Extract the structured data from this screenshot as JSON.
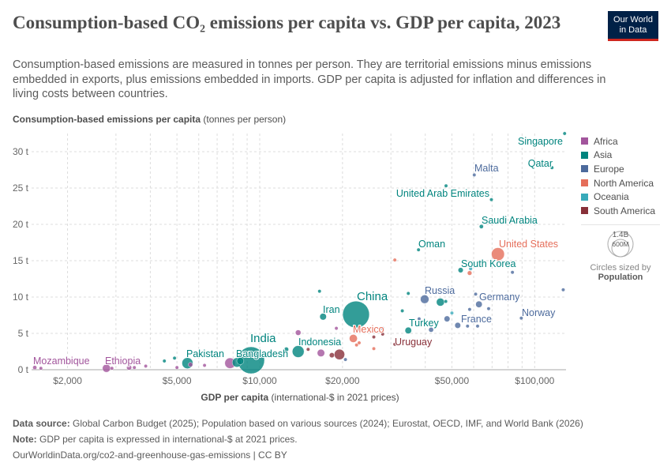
{
  "header": {
    "title": "Consumption-based CO₂ emissions per capita vs. GDP per capita, 2023",
    "subtitle": "Consumption-based emissions are measured in tonnes per person. They are territorial emissions minus emissions embedded in exports, plus emissions embedded in imports. GDP per capita is adjusted for inflation and differences in living costs between countries.",
    "logo_line1": "Our World",
    "logo_line2": "in Data"
  },
  "footer": {
    "source_label": "Data source:",
    "source": "Global Carbon Budget (2025); Population based on various sources (2024); Eurostat, OECD, IMF, and World Bank (2026)",
    "note_label": "Note:",
    "note": "GDP per capita is expressed in international-$ at 2021 prices.",
    "url": "OurWorldinData.org/co2-and-greenhouse-gas-emissions | CC BY"
  },
  "size_legend": {
    "big": "1.4B",
    "small": "600M",
    "caption": "Circles sized by",
    "variable": "Population"
  },
  "chart_data": {
    "type": "scatter",
    "title": "Consumption-based CO₂ emissions per capita vs. GDP per capita, 2023",
    "ylabel_bold": "Consumption-based emissions per capita",
    "ylabel_unit": "(tonnes per person)",
    "xlabel_bold": "GDP per capita",
    "xlabel_unit": "(international-$ in 2021 prices)",
    "x_scale": "log",
    "xlim": [
      1480,
      130000
    ],
    "ylim": [
      0,
      32.5
    ],
    "grid": true,
    "legend_placement": "right",
    "x_ticks": [
      {
        "v": 2000,
        "label": "$2,000"
      },
      {
        "v": 5000,
        "label": "$5,000"
      },
      {
        "v": 10000,
        "label": "$10,000"
      },
      {
        "v": 20000,
        "label": "$20,000"
      },
      {
        "v": 50000,
        "label": "$50,000"
      },
      {
        "v": 100000,
        "label": "$100,000"
      }
    ],
    "y_ticks": [
      {
        "v": 0,
        "label": "0 t"
      },
      {
        "v": 5,
        "label": "5 t"
      },
      {
        "v": 10,
        "label": "10 t"
      },
      {
        "v": 15,
        "label": "15 t"
      },
      {
        "v": 20,
        "label": "20 t"
      },
      {
        "v": 25,
        "label": "25 t"
      },
      {
        "v": 30,
        "label": "30 t"
      }
    ],
    "regions": [
      {
        "name": "Africa",
        "color": "#a2559c"
      },
      {
        "name": "Asia",
        "color": "#00847e"
      },
      {
        "name": "Europe",
        "color": "#4c6a9c"
      },
      {
        "name": "North America",
        "color": "#e56e5a"
      },
      {
        "name": "Oceania",
        "color": "#38aaba"
      },
      {
        "name": "South America",
        "color": "#883039"
      }
    ],
    "points": [
      {
        "name": "Singapore",
        "region": "Asia",
        "gdp": 128500,
        "co2": 32.5,
        "pop": 6,
        "label": true
      },
      {
        "name": "Qatar",
        "region": "Asia",
        "gdp": 115600,
        "co2": 27.8,
        "pop": 3,
        "label": true
      },
      {
        "name": "Malta",
        "region": "Europe",
        "gdp": 60300,
        "co2": 26.8,
        "pop": 0.5,
        "label": true
      },
      {
        "name": "United Arab Emirates",
        "region": "Asia",
        "gdp": 69600,
        "co2": 23.4,
        "pop": 10,
        "label": true
      },
      {
        "name": "Saudi Arabia",
        "region": "Asia",
        "gdp": 64000,
        "co2": 19.7,
        "pop": 33,
        "label": true
      },
      {
        "name": "Oman",
        "region": "Asia",
        "gdp": 37800,
        "co2": 16.5,
        "pop": 5,
        "label": true
      },
      {
        "name": "United States",
        "region": "North America",
        "gdp": 73500,
        "co2": 15.9,
        "pop": 335,
        "label": true
      },
      {
        "name": "South Korea",
        "region": "Asia",
        "gdp": 53800,
        "co2": 13.7,
        "pop": 52,
        "label": true
      },
      {
        "name": "China",
        "region": "Asia",
        "gdp": 22400,
        "co2": 7.6,
        "pop": 1410,
        "label": true
      },
      {
        "name": "Russia",
        "region": "Europe",
        "gdp": 39800,
        "co2": 9.7,
        "pop": 144,
        "label": true
      },
      {
        "name": "Germany",
        "region": "Europe",
        "gdp": 62700,
        "co2": 9.0,
        "pop": 84,
        "label": true
      },
      {
        "name": "Norway",
        "region": "Europe",
        "gdp": 89400,
        "co2": 7.1,
        "pop": 5.5,
        "label": true
      },
      {
        "name": "France",
        "region": "Europe",
        "gdp": 52500,
        "co2": 6.1,
        "pop": 68,
        "label": true
      },
      {
        "name": "Turkey",
        "region": "Asia",
        "gdp": 34700,
        "co2": 5.4,
        "pop": 85,
        "label": true
      },
      {
        "name": "Mexico",
        "region": "North America",
        "gdp": 21900,
        "co2": 4.3,
        "pop": 128,
        "label": true
      },
      {
        "name": "Uruguay",
        "region": "South America",
        "gdp": 31000,
        "co2": 3.5,
        "pop": 3.4,
        "label": true
      },
      {
        "name": "Iran",
        "region": "Asia",
        "gdp": 17000,
        "co2": 7.3,
        "pop": 89,
        "label": true
      },
      {
        "name": "Indonesia",
        "region": "Asia",
        "gdp": 13800,
        "co2": 2.5,
        "pop": 277,
        "label": true
      },
      {
        "name": "India",
        "region": "Asia",
        "gdp": 9300,
        "co2": 1.3,
        "pop": 1430,
        "label": true
      },
      {
        "name": "Bangladesh",
        "region": "Asia",
        "gdp": 8260,
        "co2": 1.0,
        "pop": 172,
        "label": true
      },
      {
        "name": "Pakistan",
        "region": "Asia",
        "gdp": 5460,
        "co2": 0.9,
        "pop": 240,
        "label": true
      },
      {
        "name": "Ethiopia",
        "region": "Africa",
        "gdp": 2770,
        "co2": 0.2,
        "pop": 126,
        "label": true
      },
      {
        "name": "Mozambique",
        "region": "Africa",
        "gdp": 1520,
        "co2": 0.3,
        "pop": 33,
        "label": true
      },
      {
        "region": "Africa",
        "gdp": 1600,
        "co2": 0.2,
        "pop": 20
      },
      {
        "region": "Africa",
        "gdp": 2900,
        "co2": 0.2,
        "pop": 5
      },
      {
        "region": "Africa",
        "gdp": 3350,
        "co2": 0.3,
        "pop": 50
      },
      {
        "region": "Africa",
        "gdp": 3500,
        "co2": 0.3,
        "pop": 8
      },
      {
        "region": "Africa",
        "gdp": 3850,
        "co2": 0.5,
        "pop": 8
      },
      {
        "region": "Africa",
        "gdp": 5000,
        "co2": 0.3,
        "pop": 15
      },
      {
        "region": "Africa",
        "gdp": 5600,
        "co2": 0.7,
        "pop": 40
      },
      {
        "region": "Africa",
        "gdp": 6300,
        "co2": 0.6,
        "pop": 20
      },
      {
        "region": "Africa",
        "gdp": 7800,
        "co2": 0.9,
        "pop": 220
      },
      {
        "region": "Africa",
        "gdp": 13800,
        "co2": 5.1,
        "pop": 60
      },
      {
        "region": "Africa",
        "gdp": 16700,
        "co2": 2.3,
        "pop": 110
      },
      {
        "region": "Africa",
        "gdp": 19000,
        "co2": 5.7,
        "pop": 7
      },
      {
        "region": "Asia",
        "gdp": 4500,
        "co2": 1.2,
        "pop": 5
      },
      {
        "region": "Asia",
        "gdp": 4900,
        "co2": 1.6,
        "pop": 10
      },
      {
        "region": "Asia",
        "gdp": 8500,
        "co2": 1.2,
        "pop": 100
      },
      {
        "region": "Asia",
        "gdp": 16500,
        "co2": 10.8,
        "pop": 4
      },
      {
        "region": "Asia",
        "gdp": 12500,
        "co2": 2.8,
        "pop": 40
      },
      {
        "region": "Asia",
        "gdp": 34700,
        "co2": 10.5,
        "pop": 4
      },
      {
        "region": "Asia",
        "gdp": 33000,
        "co2": 8.1,
        "pop": 8
      },
      {
        "region": "Asia",
        "gdp": 45400,
        "co2": 9.3,
        "pop": 125
      },
      {
        "region": "Asia",
        "gdp": 47600,
        "co2": 25.3,
        "pop": 4
      },
      {
        "region": "Asia",
        "gdp": 47500,
        "co2": 9.4,
        "pop": 10
      },
      {
        "region": "Europe",
        "gdp": 58000,
        "co2": 8.3,
        "pop": 5
      },
      {
        "region": "Europe",
        "gdp": 68000,
        "co2": 8.4,
        "pop": 9
      },
      {
        "region": "Europe",
        "gdp": 57000,
        "co2": 6.0,
        "pop": 10
      },
      {
        "region": "Europe",
        "gdp": 48000,
        "co2": 7.0,
        "pop": 68
      },
      {
        "region": "Europe",
        "gdp": 61000,
        "co2": 10.4,
        "pop": 5
      },
      {
        "region": "Europe",
        "gdp": 83000,
        "co2": 13.4,
        "pop": 5
      },
      {
        "region": "Europe",
        "gdp": 127000,
        "co2": 11.0,
        "pop": 0.6
      },
      {
        "region": "Europe",
        "gdp": 42000,
        "co2": 5.5,
        "pop": 47
      },
      {
        "region": "Europe",
        "gdp": 62000,
        "co2": 6.0,
        "pop": 17
      },
      {
        "region": "Europe",
        "gdp": 28000,
        "co2": 5.7,
        "pop": 9
      },
      {
        "region": "Europe",
        "gdp": 38000,
        "co2": 7.0,
        "pop": 10
      },
      {
        "region": "Europe",
        "gdp": 20500,
        "co2": 1.4,
        "pop": 3
      },
      {
        "region": "North America",
        "gdp": 31000,
        "co2": 15.1,
        "pop": 1.5
      },
      {
        "region": "North America",
        "gdp": 58000,
        "co2": 13.3,
        "pop": 40
      },
      {
        "region": "North America",
        "gdp": 23000,
        "co2": 3.7,
        "pop": 5
      },
      {
        "region": "North America",
        "gdp": 26000,
        "co2": 2.9,
        "pop": 3
      },
      {
        "region": "North America",
        "gdp": 22500,
        "co2": 3.4,
        "pop": 3
      },
      {
        "region": "Oceania",
        "gdp": 58500,
        "co2": 13.9,
        "pop": 26
      },
      {
        "region": "Oceania",
        "gdp": 50000,
        "co2": 7.8,
        "pop": 5
      },
      {
        "region": "South America",
        "gdp": 19500,
        "co2": 2.1,
        "pop": 215
      },
      {
        "region": "South America",
        "gdp": 18300,
        "co2": 2.0,
        "pop": 50
      },
      {
        "region": "South America",
        "gdp": 15000,
        "co2": 2.8,
        "pop": 20
      },
      {
        "region": "South America",
        "gdp": 26000,
        "co2": 4.5,
        "pop": 19
      },
      {
        "region": "South America",
        "gdp": 28000,
        "co2": 4.9,
        "pop": 5
      }
    ]
  }
}
